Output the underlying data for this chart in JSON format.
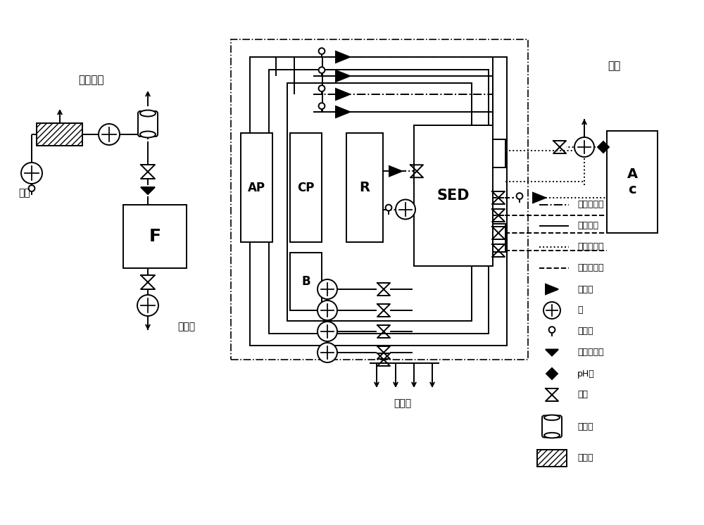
{
  "bg_color": "#ffffff",
  "line_color": "#000000",
  "lw": 1.4,
  "figsize": [
    10.0,
    7.46
  ],
  "xlim": [
    0,
    10
  ],
  "ylim": [
    0,
    7.46
  ]
}
